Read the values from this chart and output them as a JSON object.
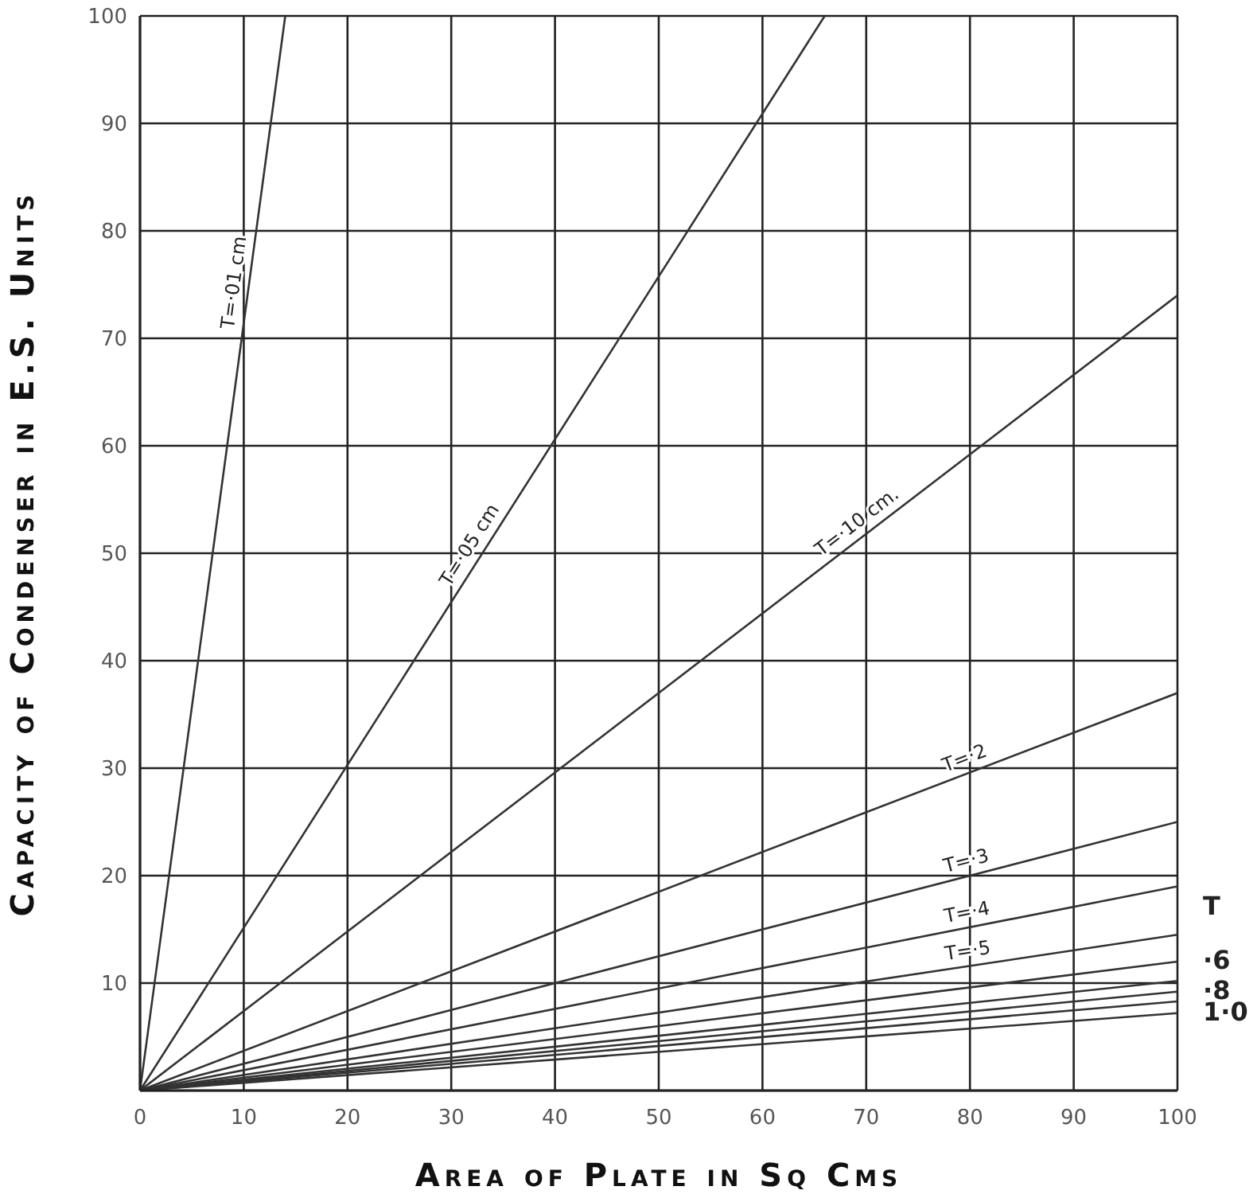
{
  "chart_data": {
    "type": "line",
    "xlabel": "Area of Plate in Sq Cms",
    "ylabel": "Capacity of Condenser in E.S. Units",
    "xlim": [
      0,
      100
    ],
    "xticks": [
      0,
      10,
      20,
      30,
      40,
      50,
      60,
      70,
      80,
      90,
      100
    ],
    "ylim": [
      0,
      100
    ],
    "yticks": [
      {
        "value": 0,
        "label": null
      },
      10,
      20,
      30,
      40,
      50,
      60,
      70,
      80,
      90,
      100
    ],
    "grid": true,
    "marker": "none",
    "line_style": "solid",
    "series": [
      {
        "color": "#333333",
        "x": [
          0,
          14
        ],
        "values": [
          0,
          100
        ]
      },
      {
        "color": "#333333",
        "x": [
          0,
          66
        ],
        "values": [
          0,
          100
        ]
      },
      {
        "color": "#333333",
        "x": [
          0,
          100
        ],
        "values": [
          0,
          74
        ]
      },
      {
        "color": "#333333",
        "x": [
          0,
          100
        ],
        "values": [
          0,
          37
        ]
      },
      {
        "color": "#333333",
        "x": [
          0,
          100
        ],
        "values": [
          0,
          25
        ]
      },
      {
        "color": "#333333",
        "x": [
          0,
          100
        ],
        "values": [
          0,
          19
        ]
      },
      {
        "color": "#333333",
        "x": [
          0,
          100
        ],
        "values": [
          0,
          14.5
        ]
      },
      {
        "color": "#333333",
        "x": [
          0,
          100
        ],
        "values": [
          0,
          12
        ]
      },
      {
        "color": "#333333",
        "x": [
          0,
          100
        ],
        "values": [
          0,
          10.2
        ]
      },
      {
        "color": "#333333",
        "x": [
          0,
          100
        ],
        "values": [
          0,
          9.2
        ]
      },
      {
        "color": "#333333",
        "x": [
          0,
          100
        ],
        "values": [
          0,
          8.3
        ]
      },
      {
        "color": "#333333",
        "x": [
          0,
          100
        ],
        "values": [
          0,
          7.2
        ]
      }
    ],
    "annotations": [
      {
        "text": "T=·01 cm",
        "x": 10.5,
        "y": 75
      },
      {
        "text": "T=·05 cm",
        "x": 33,
        "y": 50
      },
      {
        "text": "T=·10 cm.",
        "x": 70,
        "y": 51.8
      },
      {
        "text": "T=·2",
        "x": 80,
        "y": 29.6
      },
      {
        "text": "T=·3",
        "x": 80,
        "y": 20
      },
      {
        "text": "T=·4",
        "x": 80,
        "y": 15.2
      },
      {
        "text": "T=·5",
        "x": 80,
        "y": 11.6
      },
      "T",
      {
        "text": "·6",
        "x": 100,
        "y": 12
      },
      {
        "text": "·8",
        "x": 100,
        "y": 9.2
      },
      {
        "text": "1·0",
        "x": 100,
        "y": 7.2
      }
    ]
  }
}
